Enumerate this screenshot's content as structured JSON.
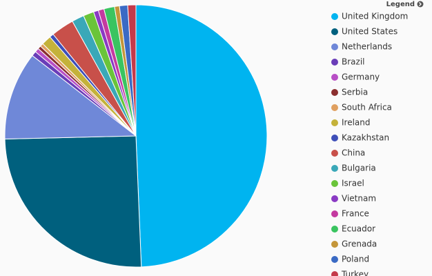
{
  "chart_data": {
    "type": "pie",
    "legend_title": "Legend",
    "legend": "right",
    "categories": [
      "United Kingdom",
      "United States",
      "Netherlands",
      "Brazil",
      "Germany",
      "Serbia",
      "South Africa",
      "Ireland",
      "Kazakhstan",
      "China",
      "Bulgaria",
      "Israel",
      "Vietnam",
      "France",
      "Ecuador",
      "Grenada",
      "Poland",
      "Turkey"
    ],
    "values": [
      49,
      25.1,
      10.8,
      0.6,
      0.5,
      0.4,
      0.4,
      1.2,
      0.5,
      2.8,
      1.5,
      1.3,
      0.6,
      0.7,
      1.3,
      0.6,
      1.0,
      1.0
    ],
    "colors": [
      "#00b4f0",
      "#00607e",
      "#6f88d8",
      "#6a3db8",
      "#b84fc6",
      "#8b2f2f",
      "#e0a060",
      "#c4b23a",
      "#3e4fb8",
      "#c8504a",
      "#3aa8b8",
      "#6ac43a",
      "#8a3ac4",
      "#c43aa0",
      "#3ac460",
      "#c4963a",
      "#3a6ac4",
      "#c43a4a"
    ]
  }
}
